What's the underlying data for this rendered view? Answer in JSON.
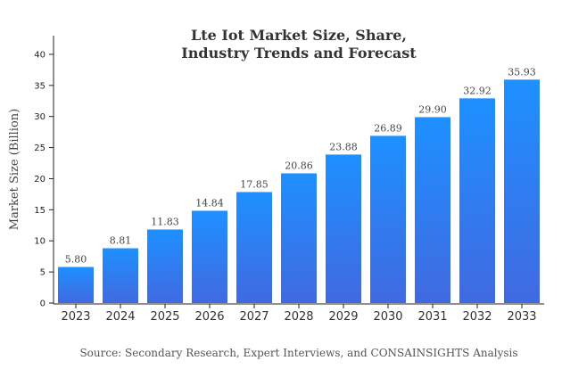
{
  "chart_data": {
    "type": "bar",
    "title_lines": [
      "Lte Iot Market Size, Share,",
      "Industry Trends and Forecast"
    ],
    "xlabel": "",
    "ylabel": "Market Size (Billion)",
    "categories": [
      "2023",
      "2024",
      "2025",
      "2026",
      "2027",
      "2028",
      "2029",
      "2030",
      "2031",
      "2032",
      "2033"
    ],
    "values": [
      5.8,
      8.81,
      11.83,
      14.84,
      17.85,
      20.86,
      23.88,
      26.89,
      29.9,
      32.92,
      35.93
    ],
    "data_labels": [
      "5.80",
      "8.81",
      "11.83",
      "14.84",
      "17.85",
      "20.86",
      "23.88",
      "26.89",
      "29.90",
      "32.92",
      "35.93"
    ],
    "ylim": [
      0,
      43
    ],
    "yticks": [
      0,
      5,
      10,
      15,
      20,
      25,
      30,
      35,
      40
    ],
    "grid": false,
    "legend": "none",
    "bar_color_top": "#1E90FF",
    "bar_color_bottom": "#4169E1",
    "source": "Source: Secondary Research, Expert Interviews, and CONSAINSIGHTS Analysis"
  }
}
